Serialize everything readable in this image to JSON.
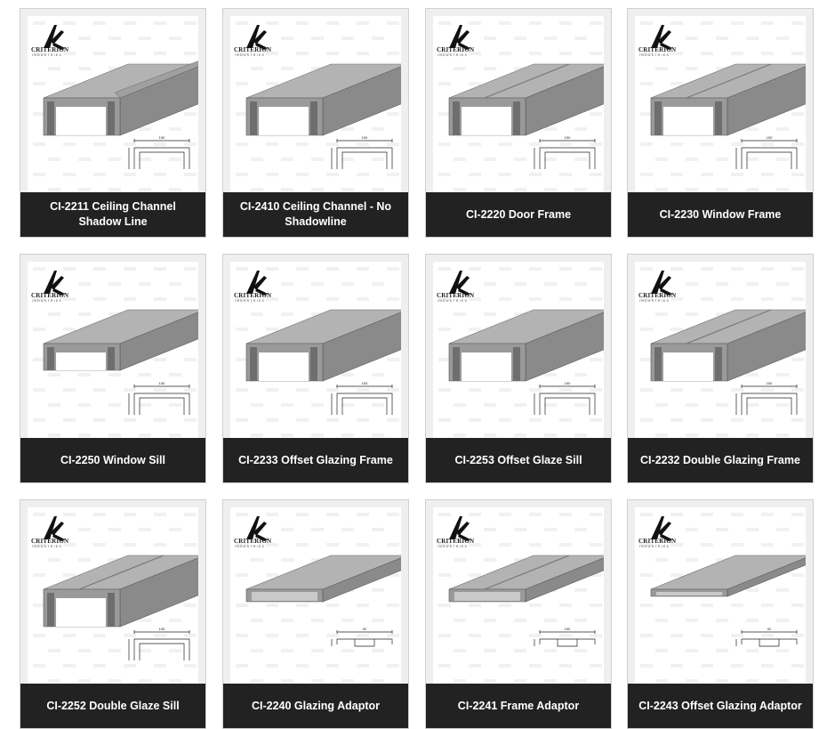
{
  "brand": {
    "logo_text": "CRITERION",
    "logo_sub": "INDUSTRIES"
  },
  "products": [
    {
      "code": "CI-2211",
      "caption": "CI-2211 Ceiling Channel Shadow Line",
      "variant": "shadow",
      "dim": "150"
    },
    {
      "code": "CI-2410",
      "caption": "CI-2410 Ceiling Channel - No Shadowline",
      "variant": "plain",
      "dim": "150"
    },
    {
      "code": "CI-2220",
      "caption": "CI-2220 Door Frame",
      "variant": "door",
      "dim": "150"
    },
    {
      "code": "CI-2230",
      "caption": "CI-2230 Window Frame",
      "variant": "window",
      "dim": "150"
    },
    {
      "code": "CI-2250",
      "caption": "CI-2250 Window Sill",
      "variant": "sill",
      "dim": "150"
    },
    {
      "code": "CI-2233",
      "caption": "CI-2233 Offset Glazing Frame",
      "variant": "offset",
      "dim": "150"
    },
    {
      "code": "CI-2253",
      "caption": "CI-2253 Offset Glaze Sill",
      "variant": "offset",
      "dim": "150"
    },
    {
      "code": "CI-2232",
      "caption": "CI-2232 Double Glazing Frame",
      "variant": "double",
      "dim": "150"
    },
    {
      "code": "CI-2252",
      "caption": "CI-2252 Double Glaze Sill",
      "variant": "double",
      "dim": "150"
    },
    {
      "code": "CI-2240",
      "caption": "CI-2240 Glazing Adaptor",
      "variant": "adaptor",
      "dim": "92"
    },
    {
      "code": "CI-2241",
      "caption": "CI-2241 Frame Adaptor",
      "variant": "frameadaptor",
      "dim": "150"
    },
    {
      "code": "CI-2243",
      "caption": "CI-2243 Offset Glazing Adaptor",
      "variant": "flat",
      "dim": "92"
    }
  ],
  "colors": {
    "caption_bg": "#222222",
    "caption_text": "#ffffff",
    "card_bg": "#efefef",
    "metal_top": "#a9a9a9",
    "metal_side": "#7d7d7d"
  }
}
